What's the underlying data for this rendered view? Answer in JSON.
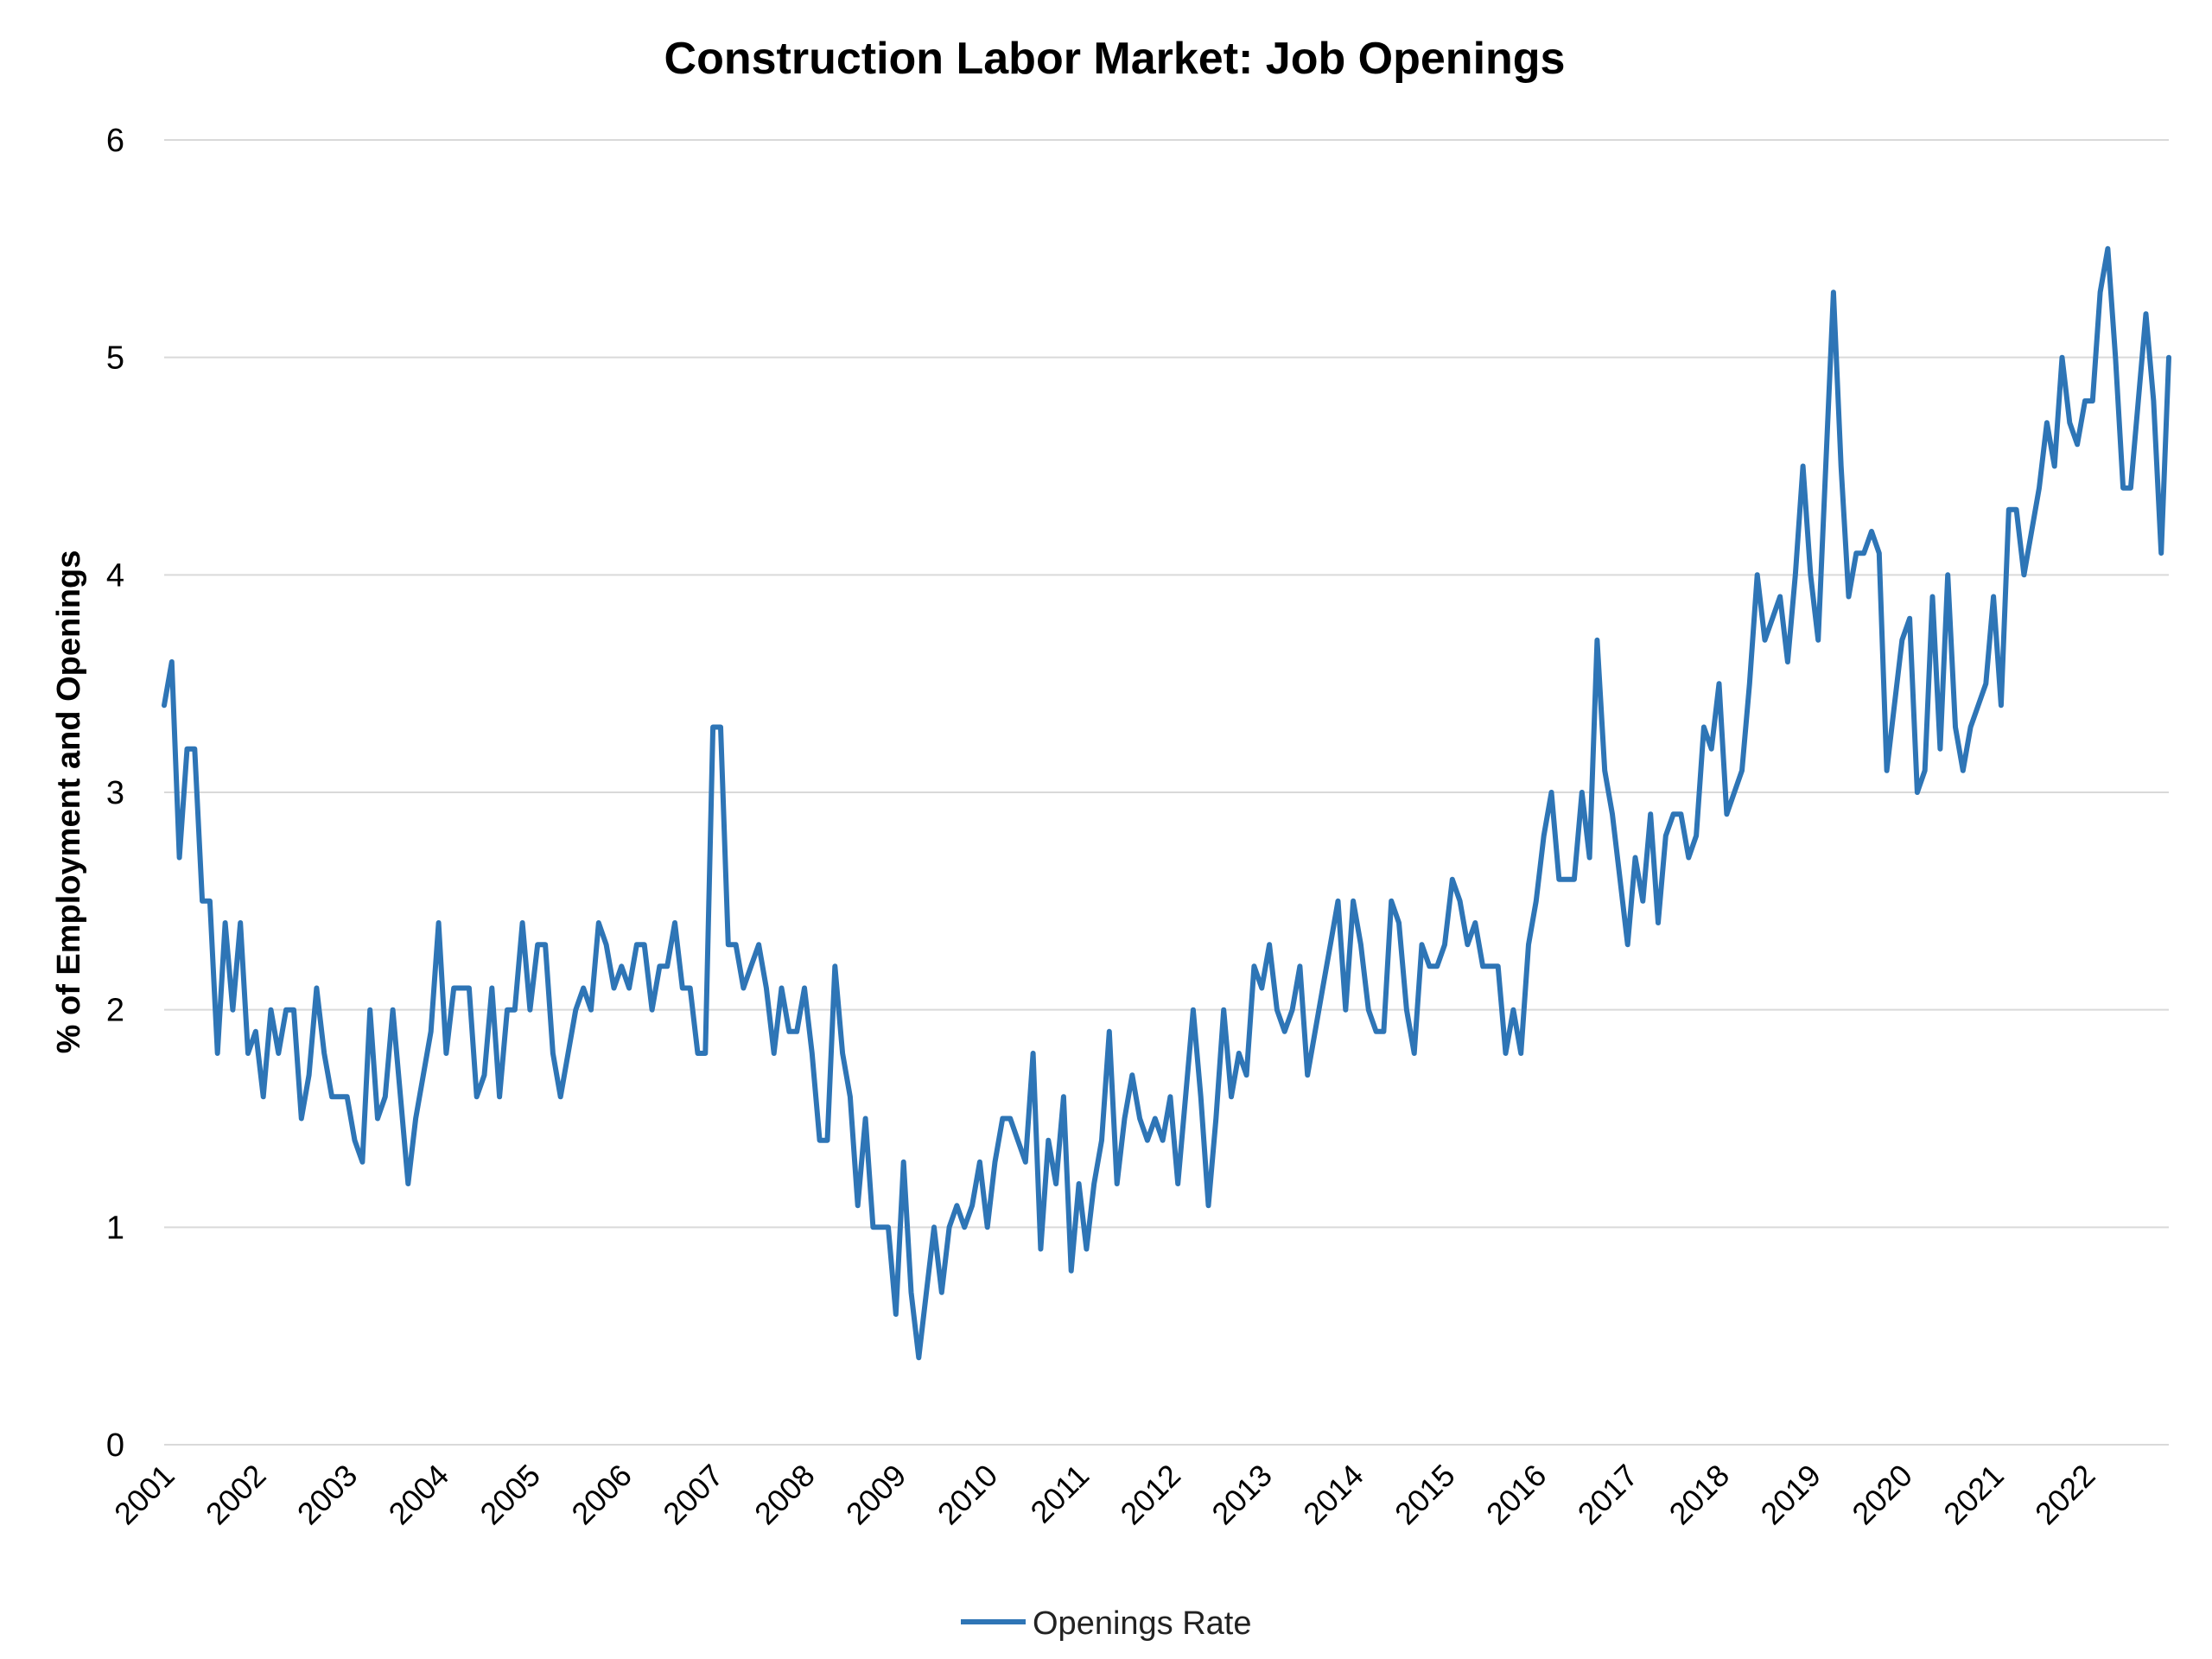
{
  "chart_data": {
    "type": "line",
    "title": "Construction Labor Market: Job Openings",
    "ylabel": "% of Employment and Openings",
    "xlabel": "",
    "ylim": [
      0,
      6
    ],
    "yticks": [
      "0",
      "1",
      "2",
      "3",
      "4",
      "5",
      "6"
    ],
    "xticks": [
      "2001",
      "2002",
      "2003",
      "2004",
      "2005",
      "2006",
      "2007",
      "2008",
      "2009",
      "2010",
      "2011",
      "2012",
      "2013",
      "2014",
      "2015",
      "2016",
      "2017",
      "2018",
      "2019",
      "2020",
      "2021",
      "2022"
    ],
    "x_start_year": 2001,
    "grid": true,
    "legend_position": "bottom",
    "series": [
      {
        "name": "Openings Rate",
        "color": "#2e75b6",
        "values": [
          3.4,
          3.6,
          2.7,
          3.2,
          3.2,
          2.5,
          2.5,
          1.8,
          2.4,
          2.0,
          2.4,
          1.8,
          1.9,
          1.6,
          2.0,
          1.8,
          2.0,
          2.0,
          1.5,
          1.7,
          2.1,
          1.8,
          1.6,
          1.6,
          1.6,
          1.4,
          1.3,
          2.0,
          1.5,
          1.6,
          2.0,
          1.6,
          1.2,
          1.5,
          1.7,
          1.9,
          2.4,
          1.8,
          2.1,
          2.1,
          2.1,
          1.6,
          1.7,
          2.1,
          1.6,
          2.0,
          2.0,
          2.4,
          2.0,
          2.3,
          2.3,
          1.8,
          1.6,
          1.8,
          2.0,
          2.1,
          2.0,
          2.4,
          2.3,
          2.1,
          2.2,
          2.1,
          2.3,
          2.3,
          2.0,
          2.2,
          2.2,
          2.4,
          2.1,
          2.1,
          1.8,
          1.8,
          3.3,
          3.3,
          2.3,
          2.3,
          2.1,
          2.2,
          2.3,
          2.1,
          1.8,
          2.1,
          1.9,
          1.9,
          2.1,
          1.8,
          1.4,
          1.4,
          2.2,
          1.8,
          1.6,
          1.1,
          1.5,
          1.0,
          1.0,
          1.0,
          0.6,
          1.3,
          0.7,
          0.4,
          0.7,
          1.0,
          0.7,
          1.0,
          1.1,
          1.0,
          1.1,
          1.3,
          1.0,
          1.3,
          1.5,
          1.5,
          1.4,
          1.3,
          1.8,
          0.9,
          1.4,
          1.2,
          1.6,
          0.8,
          1.2,
          0.9,
          1.2,
          1.4,
          1.9,
          1.2,
          1.5,
          1.7,
          1.5,
          1.4,
          1.5,
          1.4,
          1.6,
          1.2,
          1.6,
          2.0,
          1.6,
          1.1,
          1.5,
          2.0,
          1.6,
          1.8,
          1.7,
          2.2,
          2.1,
          2.3,
          2.0,
          1.9,
          2.0,
          2.2,
          1.7,
          1.9,
          2.1,
          2.3,
          2.5,
          2.0,
          2.5,
          2.3,
          2.0,
          1.9,
          1.9,
          2.5,
          2.4,
          2.0,
          1.8,
          2.3,
          2.2,
          2.2,
          2.3,
          2.6,
          2.5,
          2.3,
          2.4,
          2.2,
          2.2,
          2.2,
          1.8,
          2.0,
          1.8,
          2.3,
          2.5,
          2.8,
          3.0,
          2.6,
          2.6,
          2.6,
          3.0,
          2.7,
          3.7,
          3.1,
          2.9,
          2.6,
          2.3,
          2.7,
          2.5,
          2.9,
          2.4,
          2.8,
          2.9,
          2.9,
          2.7,
          2.8,
          3.3,
          3.2,
          3.5,
          2.9,
          3.0,
          3.1,
          3.5,
          4.0,
          3.7,
          3.8,
          3.9,
          3.6,
          4.0,
          4.5,
          4.0,
          3.7,
          4.5,
          5.3,
          4.5,
          3.9,
          4.1,
          4.1,
          4.2,
          4.1,
          3.1,
          3.4,
          3.7,
          3.8,
          3.0,
          3.1,
          3.9,
          3.2,
          4.0,
          3.3,
          3.1,
          3.3,
          3.4,
          3.5,
          3.9,
          3.4,
          4.3,
          4.3,
          4.0,
          4.2,
          4.4,
          4.7,
          4.5,
          5.0,
          4.7,
          4.6,
          4.8,
          4.8,
          5.3,
          5.5,
          5.0,
          4.4,
          4.4,
          4.8,
          5.2,
          4.8,
          4.1,
          5.0
        ]
      }
    ]
  }
}
